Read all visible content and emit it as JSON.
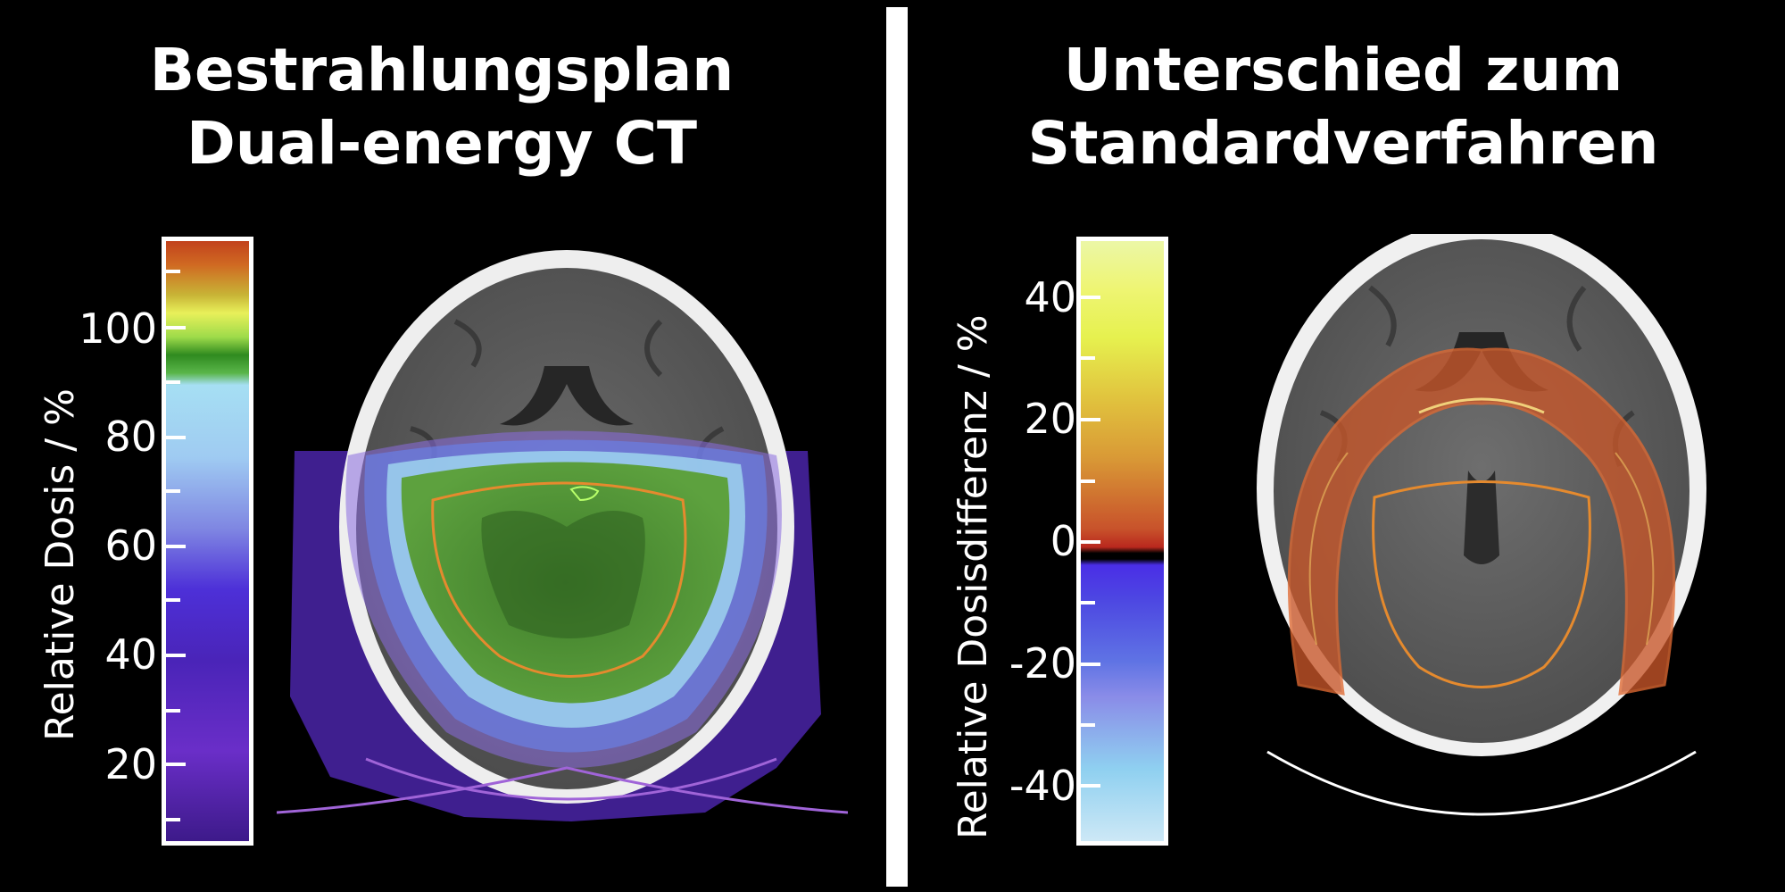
{
  "left": {
    "title_line1": "Bestrahlungsplan",
    "title_line2": "Dual-energy CT",
    "colorbar_label": "Relative Dosis / %",
    "ticks": [
      "100",
      "80",
      "60",
      "40",
      "20"
    ]
  },
  "right": {
    "title_line1": "Unterschied zum",
    "title_line2": "Standardverfahren",
    "colorbar_label": "Relative Dosisdifferenz / %",
    "ticks": [
      "40",
      "20",
      "0",
      "-20",
      "-40"
    ]
  },
  "colors": {
    "dose_high": "#c2421d",
    "dose_100": "#2f8a1f",
    "dose_mid": "#a6dff3",
    "dose_low": "#4d22a8",
    "diff_pos": "#e8f455",
    "diff_neg": "#4a2ee6",
    "contour": "#e58a2e"
  }
}
